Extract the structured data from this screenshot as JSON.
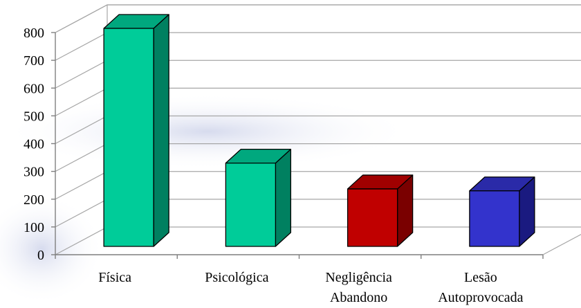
{
  "chart_data": {
    "type": "bar",
    "style": "3d-column",
    "categories": [
      [
        "Física"
      ],
      [
        "Psicológica"
      ],
      [
        "Negligência",
        "Abandono"
      ],
      [
        "Lesão",
        "Autoprovocada"
      ]
    ],
    "values": [
      785,
      300,
      207,
      200
    ],
    "ylim": [
      0,
      800
    ],
    "yticks": [
      "0",
      "100",
      "200",
      "300",
      "400",
      "500",
      "600",
      "700",
      "800"
    ],
    "grid": true,
    "legend": "none",
    "colors": {
      "front": [
        "#00cc99",
        "#00cc99",
        "#c00000",
        "#3333cc"
      ],
      "top": [
        "#00a87e",
        "#00a87e",
        "#a00000",
        "#2a2aa8"
      ],
      "side": [
        "#008060",
        "#008060",
        "#7a0000",
        "#1a1a80"
      ]
    }
  }
}
